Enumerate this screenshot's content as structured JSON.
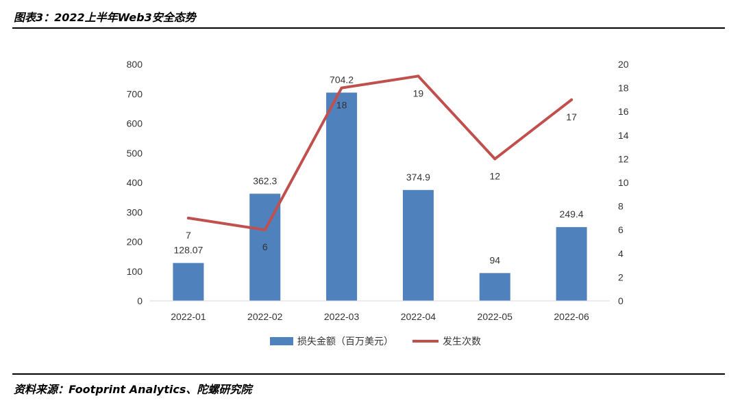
{
  "header": {
    "title": "图表3：2022上半年Web3安全态势"
  },
  "footer": {
    "source": "资料来源：Footprint Analytics、陀螺研究院"
  },
  "chart_data": {
    "type": "bar",
    "categories": [
      "2022-01",
      "2022-02",
      "2022-03",
      "2022-04",
      "2022-05",
      "2022-06"
    ],
    "series": [
      {
        "name": "损失金额（百万美元）",
        "type": "bar",
        "axis": "left",
        "values": [
          128.07,
          362.3,
          704.2,
          374.9,
          94,
          249.4
        ],
        "labels": [
          "128.07",
          "362.3",
          "704.2",
          "374.9",
          "94",
          "249.4"
        ],
        "color": "#4f81bd"
      },
      {
        "name": "发生次数",
        "type": "line",
        "axis": "right",
        "values": [
          7,
          6,
          18,
          19,
          12,
          17
        ],
        "labels": [
          "7",
          "6",
          "18",
          "19",
          "12",
          "17"
        ],
        "color": "#c0504d"
      }
    ],
    "y_left": {
      "min": 0,
      "max": 800,
      "ticks": [
        "0",
        "100",
        "200",
        "300",
        "400",
        "500",
        "600",
        "700",
        "800"
      ]
    },
    "y_right": {
      "min": 0,
      "max": 20,
      "ticks": [
        "0",
        "2",
        "4",
        "6",
        "8",
        "10",
        "12",
        "14",
        "16",
        "18",
        "20"
      ]
    },
    "grid": false,
    "legend": "bottom-center"
  }
}
